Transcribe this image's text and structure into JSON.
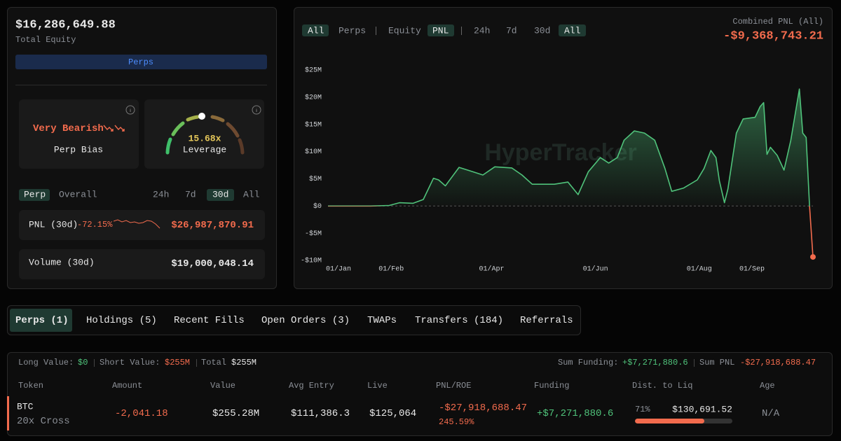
{
  "summary": {
    "total_equity": "$16,286,649.88",
    "total_equity_label": "Total Equity",
    "mode_button": "Perps",
    "bias": {
      "value": "Very Bearish",
      "label": "Perp Bias"
    },
    "leverage": {
      "value": "15.68x",
      "label": "Leverage"
    },
    "tabs": [
      "Perp",
      "Overall",
      "24h",
      "7d",
      "30d",
      "All"
    ],
    "pnl": {
      "label": "PNL (30d)",
      "change": "-72.15%",
      "value": "$26,987,870.91"
    },
    "volume": {
      "label": "Volume (30d)",
      "value": "$19,000,048.14"
    }
  },
  "chart_header": {
    "tabs": [
      "All",
      "Perps",
      "Equity",
      "PNL",
      "24h",
      "7d",
      "30d",
      "All"
    ],
    "combined_label": "Combined PNL (All)",
    "combined_value": "-$9,368,743.21"
  },
  "chart_data": {
    "type": "area",
    "watermark": "HyperTracker",
    "color": "#4fc27a",
    "negative_color": "#f26b4d",
    "grid": false,
    "zero_line": true,
    "x": [
      0,
      25,
      36,
      42,
      50,
      56,
      62,
      65,
      69,
      77,
      85,
      91,
      98,
      108,
      114,
      120,
      133,
      141,
      147,
      153,
      160,
      165,
      170,
      174,
      180,
      186,
      192,
      198,
      202,
      209,
      217,
      221,
      225,
      228,
      230,
      233,
      235,
      240,
      244,
      251,
      254,
      256,
      258,
      260,
      264,
      268,
      272,
      277,
      279,
      281,
      283,
      285
    ],
    "values": [
      0,
      0,
      100000,
      600000,
      500000,
      1200000,
      5100000,
      4800000,
      3700000,
      7100000,
      6300000,
      5700000,
      7200000,
      7000000,
      5700000,
      4000000,
      4000000,
      4400000,
      2100000,
      6300000,
      8900000,
      7900000,
      8900000,
      12100000,
      13800000,
      13400000,
      12100000,
      6900000,
      2700000,
      3300000,
      4800000,
      6900000,
      10200000,
      8900000,
      4600000,
      600000,
      3100000,
      13400000,
      16000000,
      16300000,
      18300000,
      19000000,
      9500000,
      10800000,
      9300000,
      6600000,
      12100000,
      21500000,
      13400000,
      12600000,
      0,
      -9368743.21
    ],
    "xlim": [
      0,
      285
    ],
    "ylim": [
      -10000000,
      25000000
    ],
    "xticks": [
      {
        "value": 0,
        "label": "01/Jan"
      },
      {
        "value": 31,
        "label": "01/Feb"
      },
      {
        "value": 90,
        "label": "01/Apr"
      },
      {
        "value": 151,
        "label": "01/Jun"
      },
      {
        "value": 212,
        "label": "01/Aug"
      },
      {
        "value": 243,
        "label": "01/Sep"
      }
    ],
    "yticks": [
      {
        "value": -10000000,
        "label": "-$10M"
      },
      {
        "value": -5000000,
        "label": "-$5M"
      },
      {
        "value": 0,
        "label": "$0"
      },
      {
        "value": 5000000,
        "label": "$5M"
      },
      {
        "value": 10000000,
        "label": "$10M"
      },
      {
        "value": 15000000,
        "label": "$15M"
      },
      {
        "value": 20000000,
        "label": "$20M"
      },
      {
        "value": 25000000,
        "label": "$25M"
      }
    ]
  },
  "tabs": [
    "Perps (1)",
    "Holdings (5)",
    "Recent Fills",
    "Open Orders (3)",
    "TWAPs",
    "Transfers (184)",
    "Referrals"
  ],
  "positions": {
    "totals": {
      "long_label": "Long Value:",
      "long_value": "$0",
      "short_label": "Short Value:",
      "short_value": "$255M",
      "total_label": "Total",
      "total_value": "$255M",
      "funding_label": "Sum Funding:",
      "funding_value": "+$7,271,880.6",
      "pnl_label": "Sum PNL",
      "pnl_value": "-$27,918,688.47"
    },
    "columns": [
      "Token",
      "Amount",
      "Value",
      "Avg Entry",
      "Live",
      "PNL/ROE",
      "Funding",
      "Dist. to Liq",
      "Age"
    ],
    "rows": [
      {
        "token": "BTC",
        "margin": "20x Cross",
        "amount": "-2,041.18",
        "value": "$255.28M",
        "avg_entry": "$111,386.3",
        "live": "$125,064",
        "pnl": "-$27,918,688.47",
        "roe": "245.59%",
        "funding": "+$7,271,880.6",
        "liq_distance": {
          "value": 71,
          "label": "71%"
        },
        "liq_price": "$130,691.52",
        "age": "N/A"
      }
    ]
  }
}
